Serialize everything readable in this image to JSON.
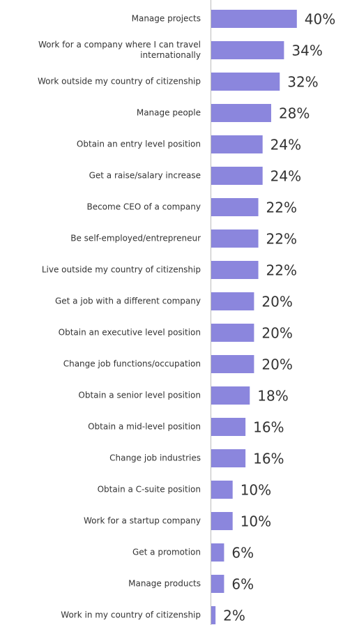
{
  "chart_data": {
    "type": "bar",
    "orientation": "horizontal",
    "color": "#8b86dd",
    "categories": [
      "Manage projects",
      "Work for a company where I can travel internationally",
      "Work outside my country of citizenship",
      "Manage people",
      "Obtain an entry level position",
      "Get a raise/salary increase",
      "Become CEO of a company",
      "Be self-employed/entrepreneur",
      "Live outside my country of citizenship",
      "Get a job with a different company",
      "Obtain an executive level position",
      "Change job functions/occupation",
      "Obtain a senior level position",
      "Obtain a mid-level position",
      "Change job industries",
      "Obtain a C-suite position",
      "Work for a startup company",
      "Get a promotion",
      "Manage products",
      "Work in my country of citizenship"
    ],
    "values": [
      40,
      34,
      32,
      28,
      24,
      24,
      22,
      22,
      22,
      20,
      20,
      20,
      18,
      16,
      16,
      10,
      10,
      6,
      6,
      2
    ],
    "value_labels": [
      "40%",
      "34%",
      "32%",
      "28%",
      "24%",
      "24%",
      "22%",
      "22%",
      "22%",
      "20%",
      "20%",
      "20%",
      "18%",
      "16%",
      "16%",
      "10%",
      "10%",
      "6%",
      "6%",
      "2%"
    ]
  }
}
